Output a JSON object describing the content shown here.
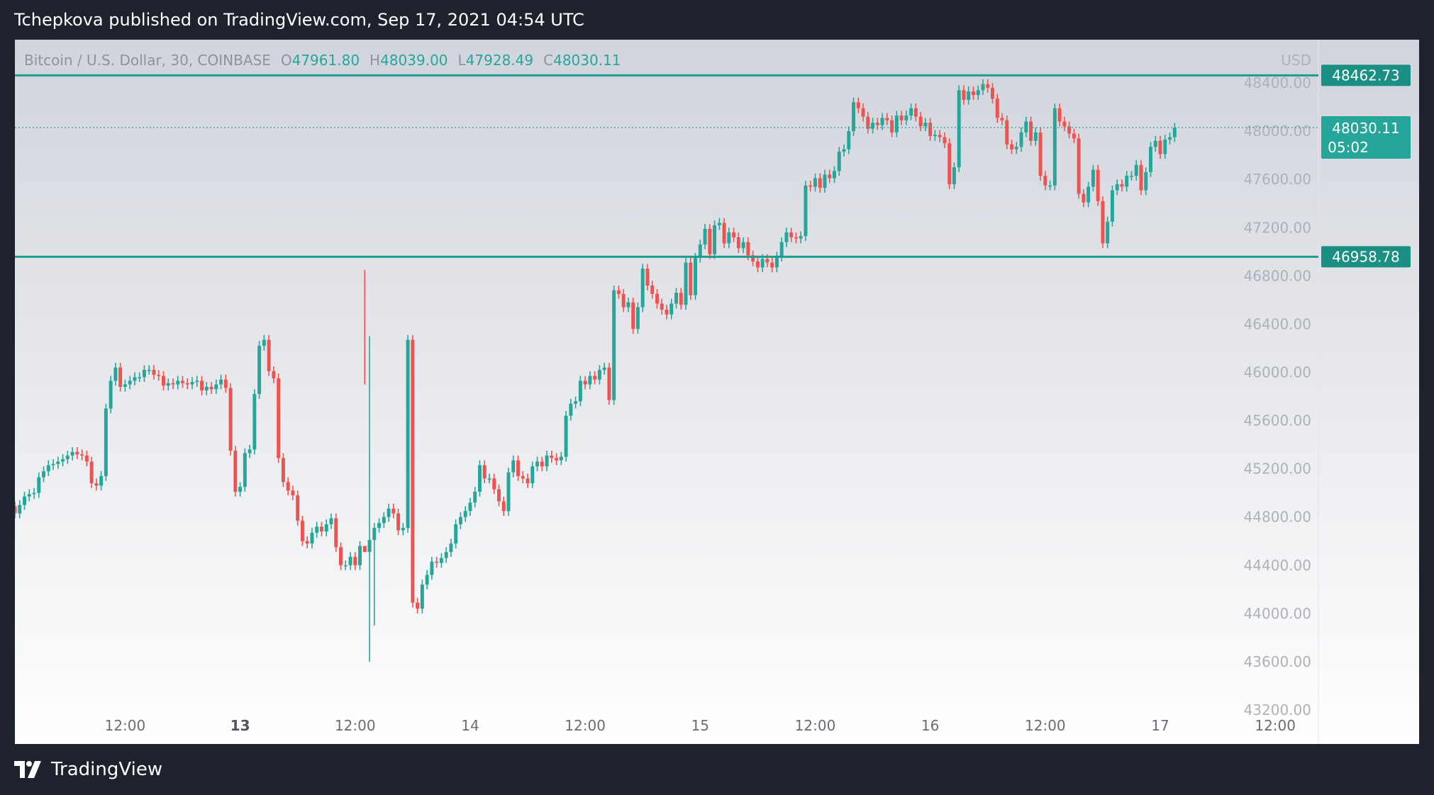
{
  "header": {
    "publisher_line": "Tchepkova published on TradingView.com, Sep 17, 2021 04:54 UTC"
  },
  "footer": {
    "brand": "TradingView"
  },
  "colors": {
    "up": "#26a69a",
    "down": "#ef5350",
    "level_line": "#1e9a8e",
    "frame_bg": "#1e222d",
    "pane_top": "#d1d4dc",
    "pane_bottom": "#ffffff",
    "axis_text": "#aeb1b9"
  },
  "chart_data": {
    "type": "candlestick",
    "symbol_title": "Bitcoin / U.S. Dollar, 30, COINBASE",
    "ohlc_readout": [
      {
        "key": "O",
        "value": "47961.80"
      },
      {
        "key": "H",
        "value": "48039.00"
      },
      {
        "key": "L",
        "value": "47928.49"
      },
      {
        "key": "C",
        "value": "48030.11"
      }
    ],
    "currency": "USD",
    "y_ticks": [
      "48400.00",
      "48000.00",
      "47600.00",
      "47200.00",
      "46800.00",
      "46400.00",
      "46000.00",
      "45600.00",
      "45200.00",
      "44800.00",
      "44400.00",
      "44000.00",
      "43600.00",
      "43200.00"
    ],
    "y_tick_values": [
      48400,
      48000,
      47600,
      47200,
      46800,
      46400,
      46000,
      45600,
      45200,
      44800,
      44400,
      44000,
      43600,
      43200
    ],
    "ylim": [
      43200,
      48700
    ],
    "x_ticks": [
      {
        "label": "12:00",
        "date": "2021-09-12 12:00",
        "bold": false
      },
      {
        "label": "13",
        "date": "2021-09-13 00:00",
        "bold": true
      },
      {
        "label": "12:00",
        "date": "2021-09-13 12:00",
        "bold": false
      },
      {
        "label": "14",
        "date": "2021-09-14 00:00",
        "bold": false
      },
      {
        "label": "12:00",
        "date": "2021-09-14 12:00",
        "bold": false
      },
      {
        "label": "15",
        "date": "2021-09-15 00:00",
        "bold": false
      },
      {
        "label": "12:00",
        "date": "2021-09-15 12:00",
        "bold": false
      },
      {
        "label": "16",
        "date": "2021-09-16 00:00",
        "bold": false
      },
      {
        "label": "12:00",
        "date": "2021-09-16 12:00",
        "bold": false
      },
      {
        "label": "17",
        "date": "2021-09-17 00:00",
        "bold": false
      },
      {
        "label": "12:00",
        "date": "2021-09-17 12:00",
        "bold": false
      }
    ],
    "xlim": [
      "2021-09-12 00:30",
      "2021-09-17 16:30"
    ],
    "horizontal_levels": [
      {
        "value": 48462.73,
        "label": "48462.73"
      },
      {
        "value": 46958.78,
        "label": "46958.78"
      }
    ],
    "last_price": {
      "value": 48030.11,
      "label": "48030.11",
      "countdown": "05:02"
    },
    "closes": [
      44830,
      44900,
      44970,
      44990,
      45000,
      45130,
      45180,
      45230,
      45240,
      45260,
      45280,
      45310,
      45340,
      45320,
      45310,
      45260,
      45080,
      45060,
      45140,
      45700,
      45930,
      46040,
      45880,
      45900,
      45930,
      45960,
      45960,
      46020,
      46020,
      45980,
      45970,
      45890,
      45910,
      45900,
      45930,
      45910,
      45900,
      45920,
      45930,
      45850,
      45880,
      45860,
      45900,
      45940,
      45870,
      45350,
      45010,
      45050,
      45330,
      45360,
      45820,
      46220,
      46270,
      46010,
      45950,
      45290,
      45090,
      45020,
      44980,
      44770,
      44600,
      44580,
      44670,
      44720,
      44680,
      44740,
      44790,
      44550,
      44400,
      44400,
      44470,
      44400,
      44560,
      44510,
      44610,
      44710,
      44750,
      44800,
      44870,
      44830,
      44690,
      44710,
      46270,
      44090,
      44040,
      44240,
      44320,
      44430,
      44420,
      44460,
      44510,
      44580,
      44740,
      44800,
      44850,
      44920,
      45010,
      45230,
      45120,
      45120,
      45030,
      44930,
      44850,
      45170,
      45270,
      45140,
      45120,
      45080,
      45220,
      45260,
      45220,
      45310,
      45290,
      45270,
      45300,
      45640,
      45740,
      45760,
      45930,
      45900,
      45970,
      45940,
      46020,
      46040,
      45770,
      46680,
      46650,
      46540,
      46580,
      46360,
      46540,
      46860,
      46720,
      46650,
      46570,
      46520,
      46480,
      46570,
      46660,
      46560,
      46910,
      46640,
      46950,
      47060,
      47190,
      46980,
      47220,
      47240,
      47070,
      47160,
      47120,
      47030,
      47080,
      46970,
      46920,
      46870,
      46940,
      46910,
      46870,
      46960,
      47080,
      47160,
      47120,
      47110,
      47130,
      47550,
      47540,
      47610,
      47530,
      47640,
      47610,
      47670,
      47830,
      47850,
      48000,
      48240,
      48190,
      48120,
      48020,
      48070,
      48050,
      48110,
      48090,
      47990,
      48130,
      48090,
      48130,
      48190,
      48120,
      48040,
      48070,
      47960,
      47970,
      47950,
      47900,
      47560,
      47700,
      48340,
      48260,
      48330,
      48300,
      48340,
      48390,
      48360,
      48270,
      48110,
      48090,
      47890,
      47850,
      47870,
      47990,
      48080,
      47920,
      47990,
      47630,
      47550,
      47550,
      48190,
      48080,
      48040,
      47980,
      47940,
      47480,
      47410,
      47540,
      47680,
      47420,
      47070,
      47250,
      47510,
      47560,
      47540,
      47630,
      47630,
      47720,
      47510,
      47660,
      47870,
      47920,
      47810,
      47930,
      47950,
      48030
    ]
  }
}
